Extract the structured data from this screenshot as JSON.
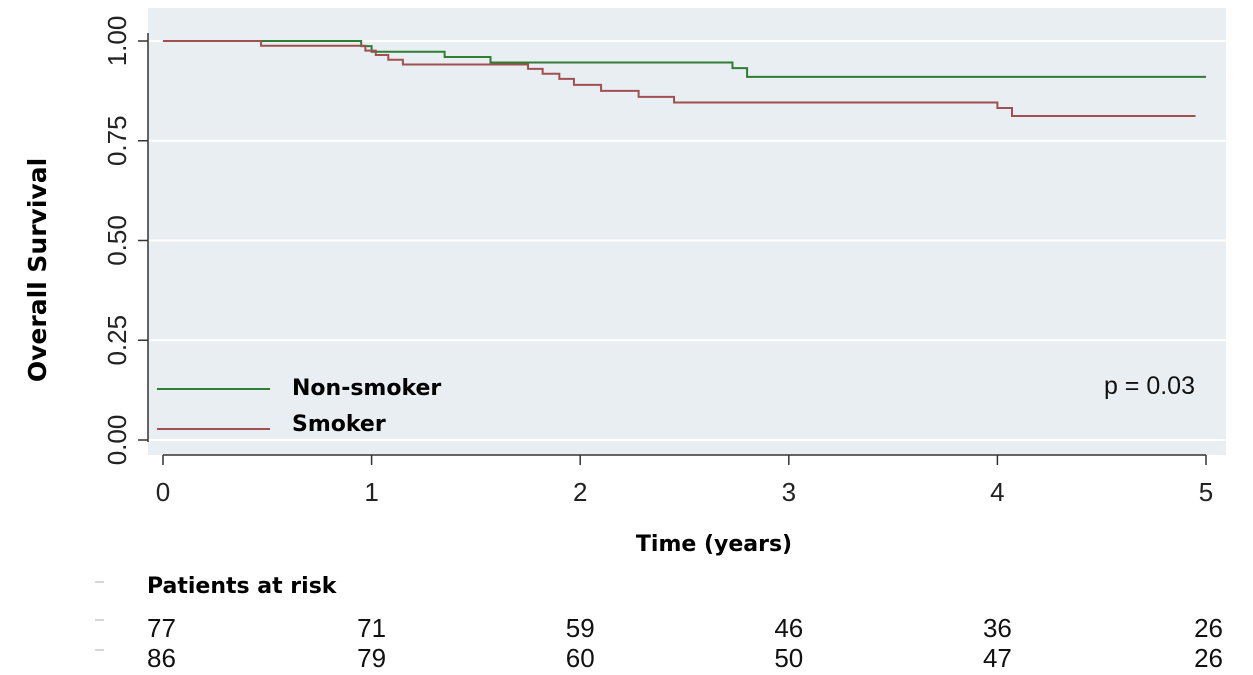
{
  "chart_data": {
    "type": "line",
    "title": "",
    "xlabel": "Time (years)",
    "ylabel": "Overall Survival",
    "xlim": [
      0,
      5
    ],
    "ylim": [
      0,
      1
    ],
    "x_ticks": [
      "0",
      "1",
      "2",
      "3",
      "4",
      "5"
    ],
    "y_ticks": [
      "0.00",
      "0.25",
      "0.50",
      "0.75",
      "1.00"
    ],
    "grid": true,
    "legend_position": "bottom-left",
    "annotation": "p = 0.03",
    "colors": {
      "non_smoker": "#2e7d32",
      "smoker": "#a05050",
      "background": "#e9eef2"
    },
    "series": [
      {
        "name": "Non-smoker",
        "steps": [
          [
            0,
            1.0
          ],
          [
            0.95,
            0.987
          ],
          [
            1.0,
            0.973
          ],
          [
            1.35,
            0.96
          ],
          [
            1.57,
            0.946
          ],
          [
            2.73,
            0.932
          ],
          [
            2.8,
            0.91
          ],
          [
            5.0,
            0.91
          ]
        ]
      },
      {
        "name": "Smoker",
        "steps": [
          [
            0,
            1.0
          ],
          [
            0.47,
            0.988
          ],
          [
            0.97,
            0.976
          ],
          [
            1.02,
            0.965
          ],
          [
            1.08,
            0.953
          ],
          [
            1.15,
            0.941
          ],
          [
            1.75,
            0.93
          ],
          [
            1.82,
            0.918
          ],
          [
            1.9,
            0.905
          ],
          [
            1.97,
            0.89
          ],
          [
            2.1,
            0.875
          ],
          [
            2.28,
            0.86
          ],
          [
            2.45,
            0.846
          ],
          [
            4.0,
            0.832
          ],
          [
            4.07,
            0.812
          ],
          [
            4.95,
            0.812
          ]
        ]
      }
    ],
    "risk_table": {
      "title": "Patients at risk",
      "times": [
        0,
        1,
        2,
        3,
        4,
        5
      ],
      "rows": [
        {
          "values": [
            "77",
            "71",
            "59",
            "46",
            "36",
            "26"
          ]
        },
        {
          "values": [
            "86",
            "79",
            "60",
            "50",
            "47",
            "26"
          ]
        }
      ]
    }
  }
}
